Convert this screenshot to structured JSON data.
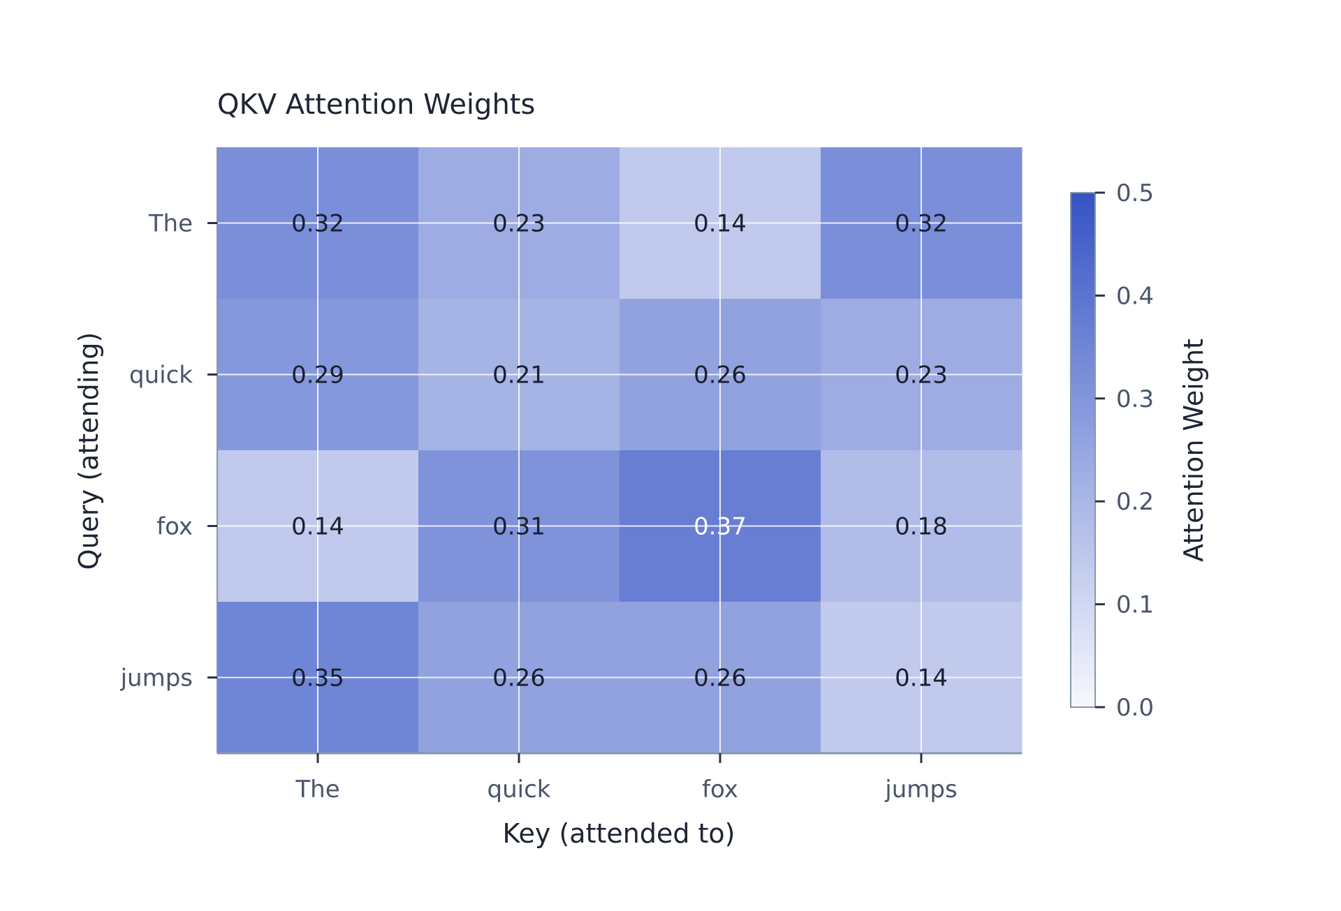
{
  "chart_data": {
    "type": "heatmap",
    "title": "QKV Attention Weights",
    "xlabel": "Key (attended to)",
    "ylabel": "Query (attending)",
    "x_categories": [
      "The",
      "quick",
      "fox",
      "jumps"
    ],
    "y_categories": [
      "The",
      "quick",
      "fox",
      "jumps"
    ],
    "values": [
      [
        0.32,
        0.23,
        0.14,
        0.32
      ],
      [
        0.29,
        0.21,
        0.26,
        0.23
      ],
      [
        0.14,
        0.31,
        0.37,
        0.18
      ],
      [
        0.35,
        0.26,
        0.26,
        0.14
      ]
    ],
    "cell_labels": [
      [
        "0.32",
        "0.23",
        "0.14",
        "0.32"
      ],
      [
        "0.29",
        "0.21",
        "0.26",
        "0.23"
      ],
      [
        "0.14",
        "0.31",
        "0.37",
        "0.18"
      ],
      [
        "0.35",
        "0.26",
        "0.26",
        "0.14"
      ]
    ],
    "grid": true,
    "colorbar": {
      "label": "Attention Weight",
      "range": [
        0.0,
        0.5
      ],
      "ticks": [
        "0.0",
        "0.1",
        "0.2",
        "0.3",
        "0.4",
        "0.5"
      ],
      "placement": "right"
    },
    "colors": {
      "low": "#f7f8fd",
      "high": "#3553c4",
      "grid": "#ffffff",
      "text_dark": "#1a1f2e",
      "text_light": "#ffffff",
      "axis_text": "#4a556b",
      "title_text": "#1e2433",
      "frame": "#8896ad"
    }
  }
}
